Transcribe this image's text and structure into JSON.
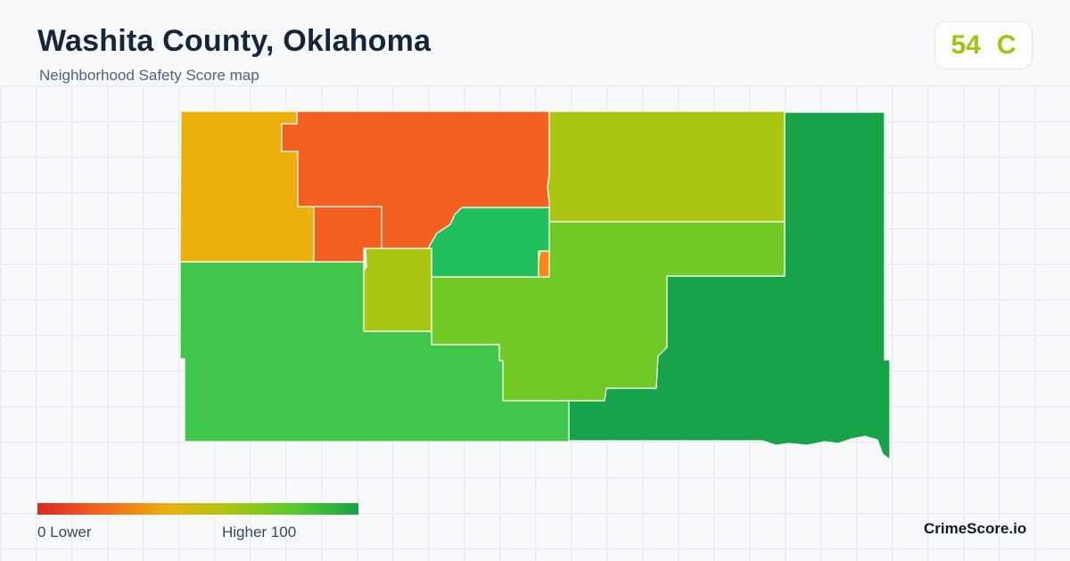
{
  "header": {
    "title": "Washita County, Oklahoma",
    "subtitle": "Neighborhood Safety Score map"
  },
  "score": {
    "value": "54",
    "grade": "C",
    "color": "#a6c216"
  },
  "legend": {
    "min_label": "0  Lower",
    "max_label": "Higher  100",
    "min": 0,
    "max": 100,
    "colors": [
      "#dc2626",
      "#f2661f",
      "#ebb00c",
      "#aac613",
      "#59c92d",
      "#16a34a"
    ]
  },
  "brand": "CrimeScore.io",
  "regions": [
    {
      "id": "northwest",
      "color": "#ebb00c"
    },
    {
      "id": "north-central",
      "color": "#f2611f"
    },
    {
      "id": "north-central-small",
      "color": "#f2611f"
    },
    {
      "id": "northeast",
      "color": "#aac613"
    },
    {
      "id": "center",
      "color": "#22c05c"
    },
    {
      "id": "center-sliver",
      "color": "#f58a1a"
    },
    {
      "id": "center-west-small",
      "color": "#aac613"
    },
    {
      "id": "center-east",
      "color": "#70c924"
    },
    {
      "id": "southwest",
      "color": "#40c64b"
    },
    {
      "id": "east",
      "color": "#16a34a"
    }
  ]
}
